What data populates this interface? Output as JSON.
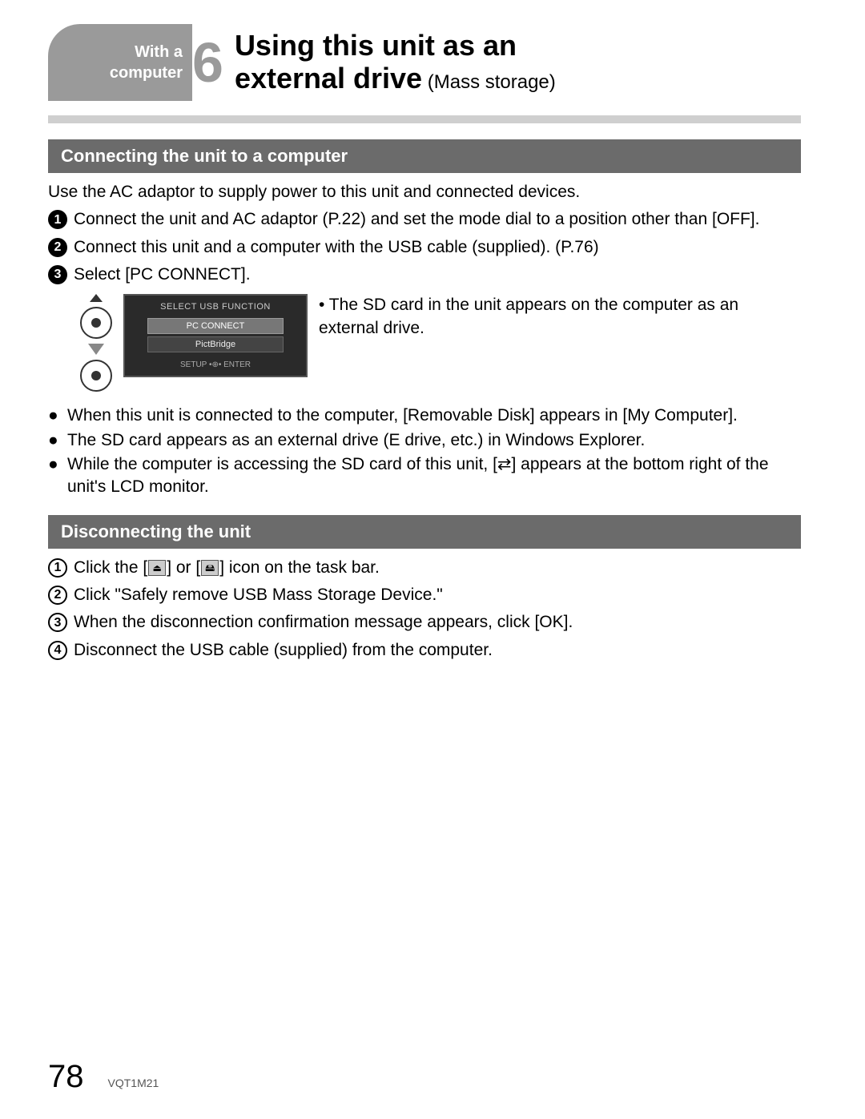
{
  "header": {
    "category_line1": "With a",
    "category_line2": "computer",
    "chapter_number": "6",
    "title_line1": "Using this unit as an",
    "title_line2": "external drive",
    "title_suffix": " (Mass storage)"
  },
  "section1": {
    "heading": "Connecting the unit to a computer",
    "intro": "Use the AC adaptor to supply power to this unit and connected devices.",
    "steps": [
      "Connect the unit and AC adaptor (P.22) and set the mode dial to a position other than [OFF].",
      "Connect this unit and a computer with the USB cable (supplied). (P.76)",
      "Select [PC CONNECT]."
    ],
    "lcd": {
      "title": "SELECT USB FUNCTION",
      "option_selected": "PC CONNECT",
      "option_other": "PictBridge",
      "footer": "SETUP •⊕• ENTER"
    },
    "side_note": "• The SD card in the unit appears on the computer as an external drive.",
    "bullets": [
      "When this unit is connected to the computer, [Removable Disk] appears in [My Computer].",
      "The SD card appears as an external drive (E drive, etc.) in Windows Explorer.",
      "While the computer is accessing the SD card of this unit, [⇄] appears at the bottom right of the unit's LCD monitor."
    ]
  },
  "section2": {
    "heading": "Disconnecting the unit",
    "step1_prefix": "Click the [",
    "step1_mid": "] or [",
    "step1_suffix": "] icon on the task bar.",
    "steps_rest": [
      "Click \"Safely remove USB Mass Storage Device.\"",
      "When the disconnection confirmation message appears, click [OK].",
      "Disconnect the USB cable (supplied) from the computer."
    ]
  },
  "footer": {
    "page_number": "78",
    "doc_code": "VQT1M21"
  },
  "colors": {
    "tab_gray": "#9a9a9a",
    "section_bar": "#6b6b6b",
    "underline": "#cfcfcf"
  }
}
